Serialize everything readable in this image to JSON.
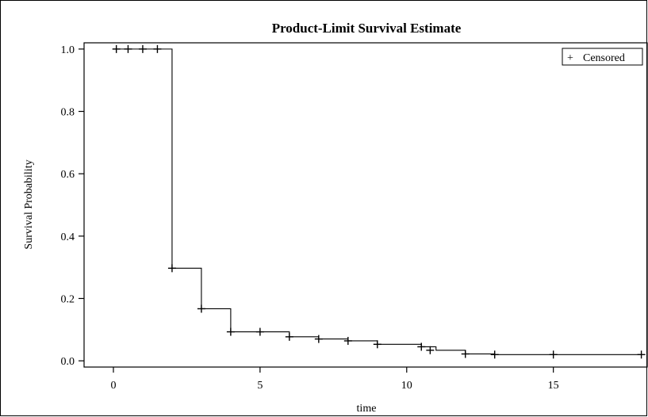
{
  "chart_data": {
    "type": "line",
    "title": "Product-Limit Survival Estimate",
    "xlabel": "time",
    "ylabel": "Survival Probability",
    "xlim": [
      -1,
      18.2
    ],
    "ylim": [
      -0.02,
      1.02
    ],
    "xticks": [
      0,
      5,
      10,
      15
    ],
    "yticks": [
      0.0,
      0.2,
      0.4,
      0.6,
      0.8,
      1.0
    ],
    "xtick_labels": [
      "0",
      "5",
      "10",
      "15"
    ],
    "ytick_labels": [
      "0.0",
      "0.2",
      "0.4",
      "0.6",
      "0.8",
      "1.0"
    ],
    "grid": false,
    "legend": {
      "position": "top-right",
      "entries": [
        {
          "marker": "+",
          "label": "Censored"
        }
      ]
    },
    "survival_steps": {
      "x": [
        0,
        2,
        3,
        4,
        6,
        7,
        8,
        9,
        10.5,
        11,
        12,
        13,
        18
      ],
      "y": [
        1.0,
        0.297,
        0.167,
        0.093,
        0.077,
        0.07,
        0.064,
        0.053,
        0.045,
        0.034,
        0.022,
        0.02,
        0.02
      ]
    },
    "censored": {
      "x": [
        0.1,
        0.5,
        1.0,
        1.5,
        2.0,
        3.0,
        4.0,
        5.0,
        6.0,
        7.0,
        8.0,
        9.0,
        10.5,
        10.8,
        12.0,
        13.0,
        15.0,
        18.0
      ],
      "y": [
        1.0,
        1.0,
        1.0,
        1.0,
        0.297,
        0.167,
        0.093,
        0.093,
        0.077,
        0.07,
        0.064,
        0.053,
        0.045,
        0.034,
        0.022,
        0.02,
        0.02,
        0.02
      ]
    }
  }
}
